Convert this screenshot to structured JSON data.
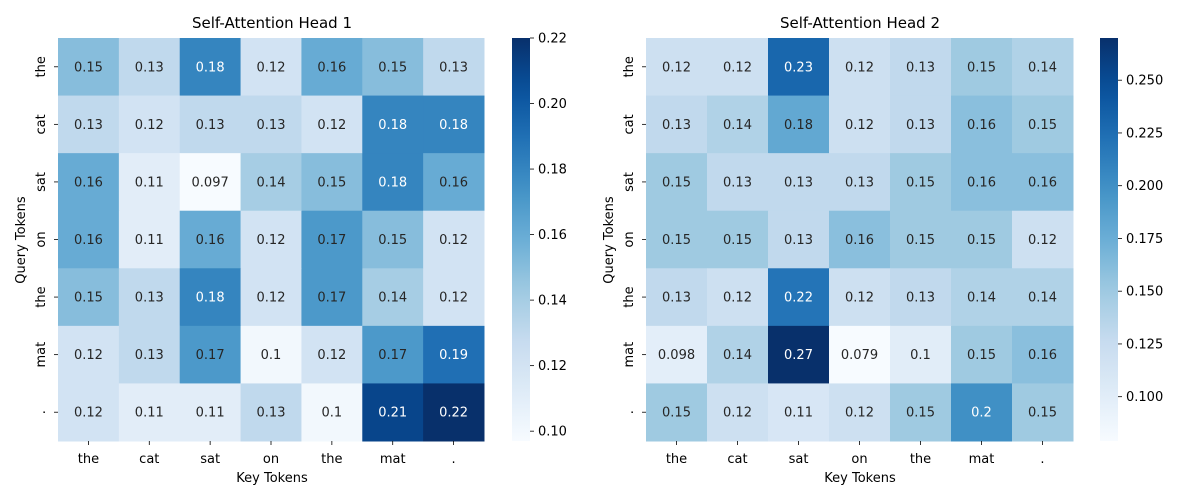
{
  "chart_data": [
    {
      "type": "heatmap",
      "title": "Self-Attention Head 1",
      "xlabel": "Key Tokens",
      "ylabel": "Query Tokens",
      "x_categories": [
        "the",
        "cat",
        "sat",
        "on",
        "the",
        "mat",
        "."
      ],
      "y_categories": [
        "the",
        "cat",
        "sat",
        "on",
        "the",
        "mat",
        "."
      ],
      "values": [
        [
          0.15,
          0.13,
          0.18,
          0.12,
          0.16,
          0.15,
          0.13
        ],
        [
          0.13,
          0.12,
          0.13,
          0.13,
          0.12,
          0.18,
          0.18
        ],
        [
          0.16,
          0.11,
          0.097,
          0.14,
          0.15,
          0.18,
          0.16
        ],
        [
          0.16,
          0.11,
          0.16,
          0.12,
          0.17,
          0.15,
          0.12
        ],
        [
          0.15,
          0.13,
          0.18,
          0.12,
          0.17,
          0.14,
          0.12
        ],
        [
          0.12,
          0.13,
          0.17,
          0.1,
          0.12,
          0.17,
          0.19
        ],
        [
          0.12,
          0.11,
          0.11,
          0.13,
          0.1,
          0.21,
          0.22
        ]
      ],
      "colormap": "Blues",
      "color_range": [
        0.097,
        0.22
      ],
      "colorbar_ticks": [
        "0.10",
        "0.12",
        "0.14",
        "0.16",
        "0.18",
        "0.20",
        "0.22"
      ]
    },
    {
      "type": "heatmap",
      "title": "Self-Attention Head 2",
      "xlabel": "Key Tokens",
      "ylabel": "Query Tokens",
      "x_categories": [
        "the",
        "cat",
        "sat",
        "on",
        "the",
        "mat",
        "."
      ],
      "y_categories": [
        "the",
        "cat",
        "sat",
        "on",
        "the",
        "mat",
        "."
      ],
      "values": [
        [
          0.12,
          0.12,
          0.23,
          0.12,
          0.13,
          0.15,
          0.14
        ],
        [
          0.13,
          0.14,
          0.18,
          0.12,
          0.13,
          0.16,
          0.15
        ],
        [
          0.15,
          0.13,
          0.13,
          0.13,
          0.15,
          0.16,
          0.16
        ],
        [
          0.15,
          0.15,
          0.13,
          0.16,
          0.15,
          0.15,
          0.12
        ],
        [
          0.13,
          0.12,
          0.22,
          0.12,
          0.13,
          0.14,
          0.14
        ],
        [
          0.098,
          0.14,
          0.27,
          0.079,
          0.1,
          0.15,
          0.16
        ],
        [
          0.15,
          0.12,
          0.11,
          0.12,
          0.15,
          0.2,
          0.15
        ]
      ],
      "colormap": "Blues",
      "color_range": [
        0.079,
        0.27
      ],
      "colorbar_ticks": [
        "0.100",
        "0.125",
        "0.150",
        "0.175",
        "0.200",
        "0.225",
        "0.250"
      ]
    }
  ]
}
